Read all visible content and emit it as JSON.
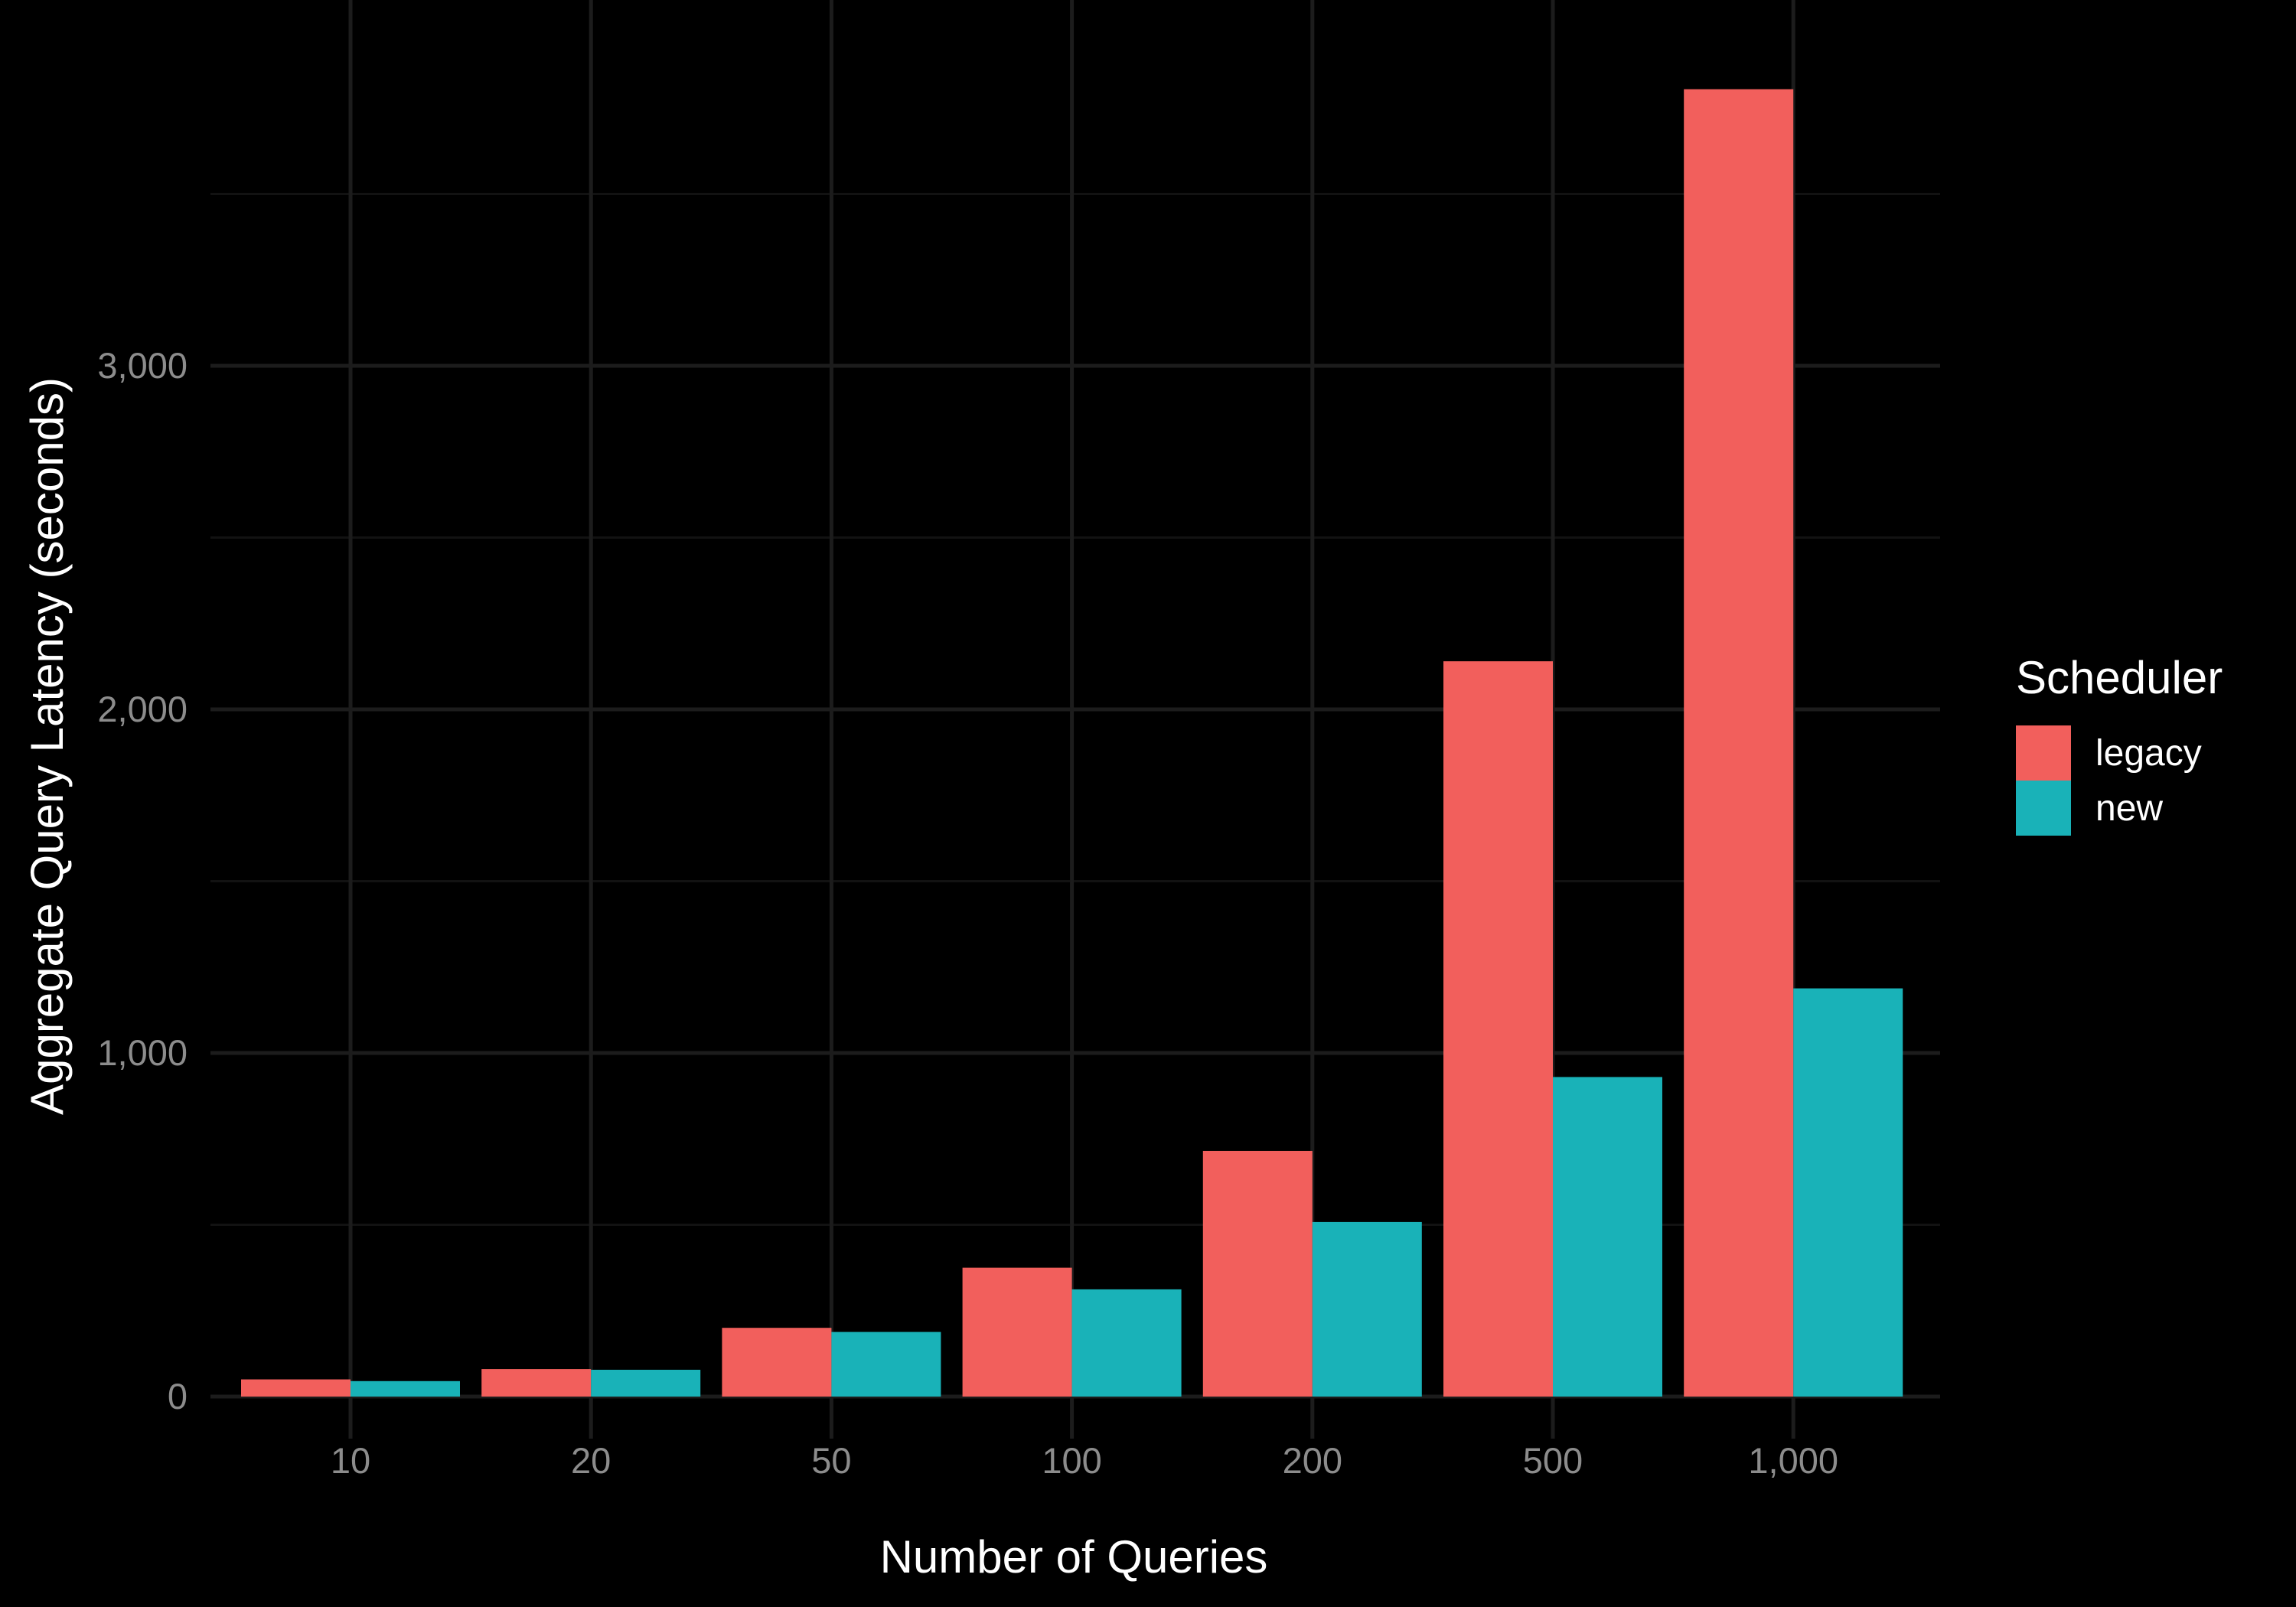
{
  "chart_data": {
    "type": "bar",
    "categories": [
      "10",
      "20",
      "50",
      "100",
      "200",
      "500",
      "1,000"
    ],
    "series": [
      {
        "name": "legacy",
        "values": [
          50,
          80,
          200,
          375,
          715,
          2140,
          3805
        ]
      },
      {
        "name": "new",
        "values": [
          45,
          78,
          188,
          312,
          508,
          930,
          1188
        ]
      }
    ],
    "xlabel": "Number of Queries",
    "ylabel": "Aggregate Query Latency (seconds)",
    "ylim": [
      0,
      4000
    ],
    "yticks": [
      0,
      1000,
      2000,
      3000
    ],
    "ytick_labels": [
      "0",
      "1,000",
      "2,000",
      "3,000"
    ],
    "grid": true,
    "legend": {
      "title": "Scheduler",
      "position": "right"
    }
  },
  "colors": {
    "legacy": "#F25F5C",
    "new": "#19B2B8",
    "background": "#000000",
    "grid_major": "#1C1C1C",
    "grid_minor": "#121212",
    "tick_text": "#8C8C8C",
    "title_text": "#FFFFFF"
  }
}
